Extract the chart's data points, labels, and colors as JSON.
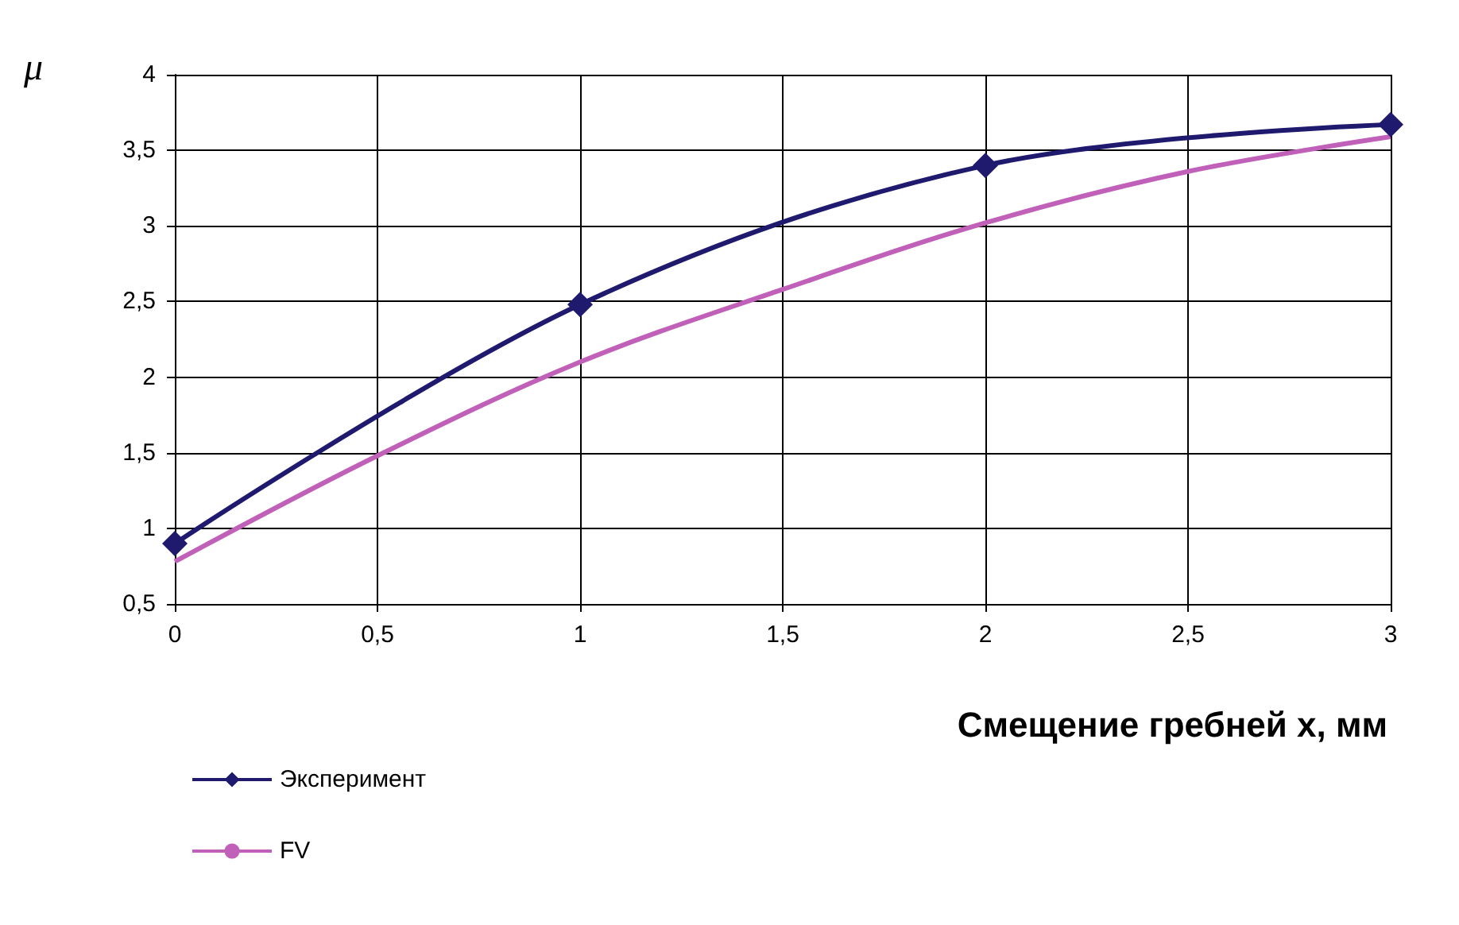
{
  "chart_data": {
    "type": "line",
    "xlabel": "Смещение гребней х, мм",
    "ylabel": "μ",
    "xlim": [
      0,
      3
    ],
    "xticks": [
      0,
      {
        "value": 0.5,
        "label": "0,5"
      },
      1,
      {
        "value": 1.5,
        "label": "1,5"
      },
      2,
      {
        "value": 2.5,
        "label": "2,5"
      },
      3
    ],
    "ylim": [
      0.5,
      4
    ],
    "yticks": [
      {
        "value": 0.5,
        "label": "0,5"
      },
      1,
      {
        "value": 1.5,
        "label": "1,5"
      },
      2,
      {
        "value": 2.5,
        "label": "2,5"
      },
      3,
      {
        "value": 3.5,
        "label": "3,5"
      },
      4
    ],
    "grid": true,
    "legend": "bottom left",
    "series": [
      {
        "name": "Эксперимент",
        "color": "#1f1a6e",
        "x": [
          0,
          1,
          2,
          3
        ],
        "values": [
          0.9,
          2.48,
          3.4,
          3.67
        ],
        "marker": "diamond"
      },
      {
        "name": "FV",
        "color": "#c060b8",
        "x": [
          0,
          0.5,
          1,
          1.5,
          2,
          2.5,
          3
        ],
        "values": [
          0.78,
          1.48,
          2.1,
          2.58,
          3.02,
          3.36,
          3.59
        ],
        "marker": "none"
      }
    ]
  }
}
